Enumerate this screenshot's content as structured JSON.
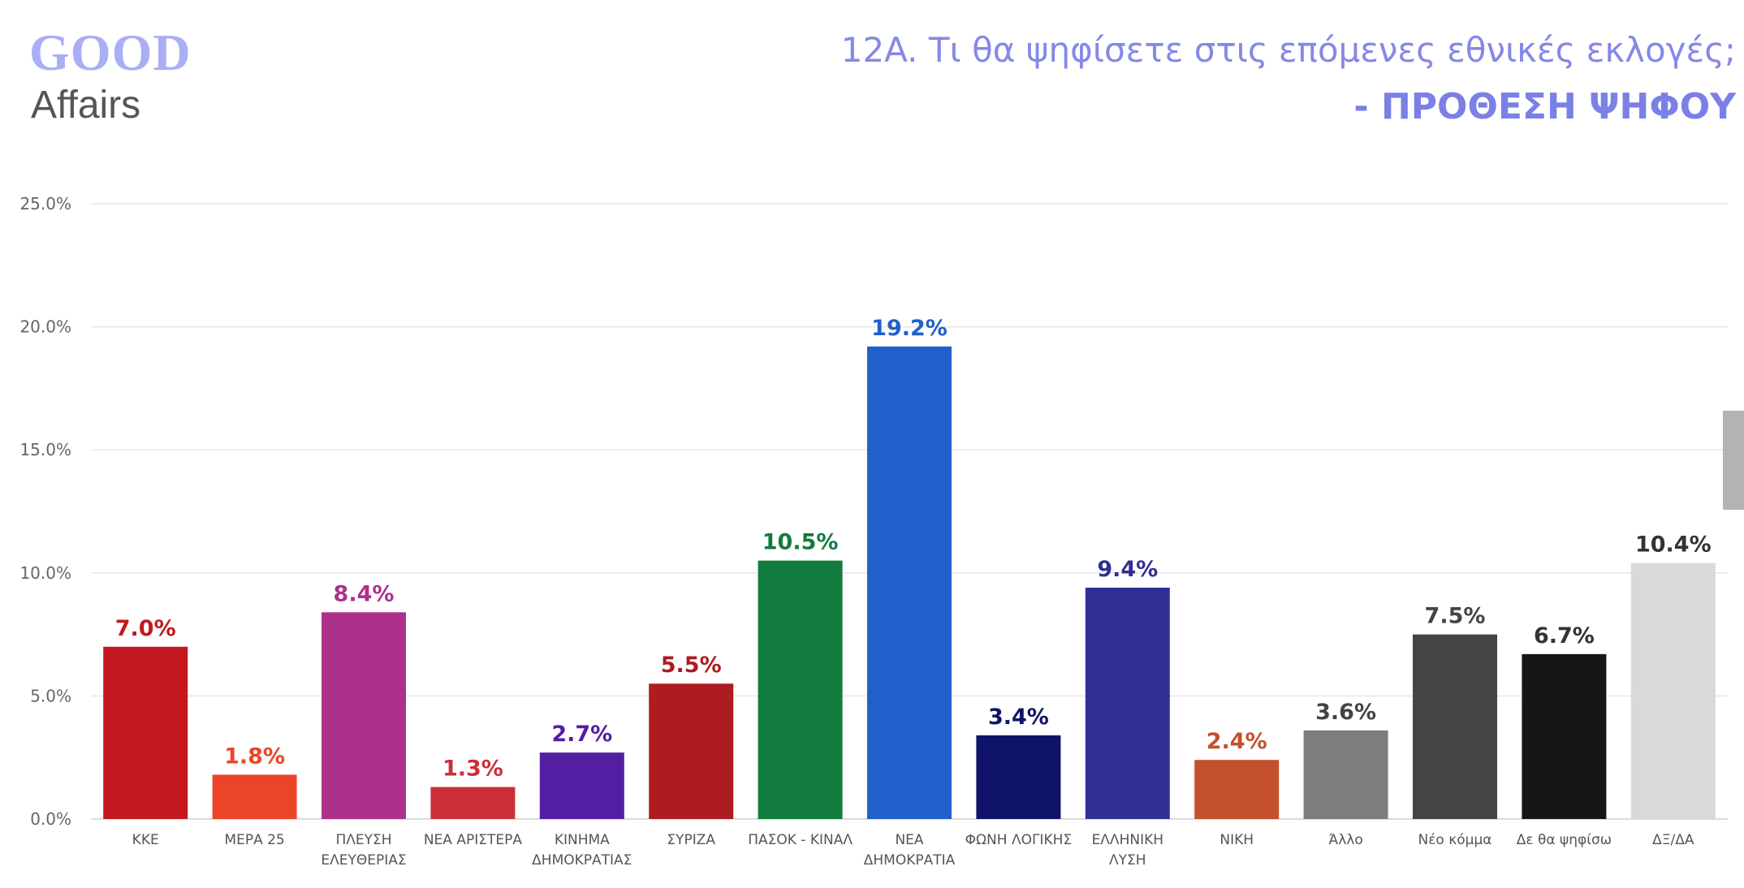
{
  "logo": {
    "top": "GOOD",
    "bottom": "Affairs",
    "color_top": "#a9aef5",
    "color_accent": "#8a8fea"
  },
  "header": {
    "title": "12A. Τι θα ψηφίσετε στις επόμενες εθνικές εκλογές;",
    "subtitle": "- ΠΡΟΘΕΣΗ ΨΗΦΟΥ",
    "title_color": "#8488e8",
    "subtitle_color": "#7a80e6"
  },
  "chart_data": {
    "type": "bar",
    "title": "12A. Τι θα ψηφίσετε στις επόμενες εθνικές εκλογές; - ΠΡΟΘΕΣΗ ΨΗΦΟΥ",
    "categories": [
      [
        "ΚΚΕ"
      ],
      [
        "ΜΕΡΑ 25"
      ],
      [
        "ΠΛΕΥΣΗ",
        "ΕΛΕΥΘΕΡΙΑΣ"
      ],
      [
        "ΝΕΑ ΑΡΙΣΤΕΡΑ"
      ],
      [
        "ΚΙΝΗΜΑ",
        "ΔΗΜΟΚΡΑΤΙΑΣ"
      ],
      [
        "ΣΥΡΙΖΑ"
      ],
      [
        "ΠΑΣΟΚ - ΚΙΝΑΛ"
      ],
      [
        "ΝΕΑ",
        "ΔΗΜΟΚΡΑΤΙΑ"
      ],
      [
        "ΦΩΝΗ ΛΟΓΙΚΗΣ"
      ],
      [
        "ΕΛΛΗΝΙΚΗ",
        "ΛΥΣΗ"
      ],
      [
        "ΝΙΚΗ"
      ],
      [
        "Άλλο"
      ],
      [
        "Νέο κόμμα"
      ],
      [
        "Δε θα ψηφίσω"
      ],
      [
        "ΔΞ/ΔΑ"
      ]
    ],
    "values": [
      7.0,
      1.8,
      8.4,
      1.3,
      2.7,
      5.5,
      10.5,
      19.2,
      3.4,
      9.4,
      2.4,
      3.6,
      7.5,
      6.7,
      10.4
    ],
    "labels": [
      "7.0%",
      "1.8%",
      "8.4%",
      "1.3%",
      "2.7%",
      "5.5%",
      "10.5%",
      "19.2%",
      "3.4%",
      "9.4%",
      "2.4%",
      "3.6%",
      "7.5%",
      "6.7%",
      "10.4%"
    ],
    "bar_colors": [
      "#c3181f",
      "#ec4428",
      "#ad318b",
      "#cc2f38",
      "#531fa3",
      "#ac1c20",
      "#127c3e",
      "#1f60cb",
      "#0f1468",
      "#302f96",
      "#c4512b",
      "#7d7d7d",
      "#444444",
      "#161616",
      "#d9d9d9"
    ],
    "label_colors": [
      "#c3181f",
      "#ec4428",
      "#ad318b",
      "#cc2f38",
      "#531fa3",
      "#ac1c20",
      "#127c3e",
      "#1f60cb",
      "#0f1468",
      "#302f96",
      "#c4512b",
      "#444444",
      "#444444",
      "#333333",
      "#333333"
    ],
    "yticks": [
      "0.0%",
      "5.0%",
      "10.0%",
      "15.0%",
      "20.0%",
      "25.0%"
    ],
    "ylim": [
      0,
      25
    ],
    "xlabel": "",
    "ylabel": "",
    "grid": true,
    "legend": "none"
  }
}
